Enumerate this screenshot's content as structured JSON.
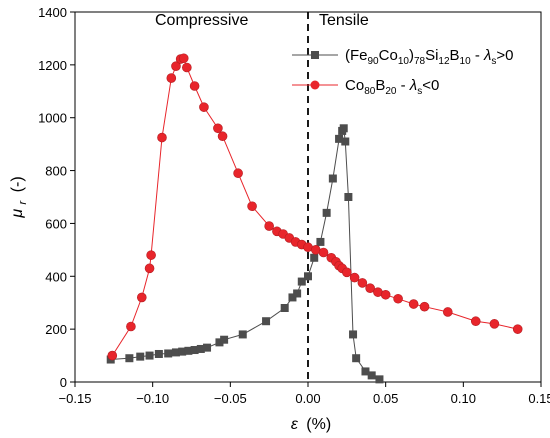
{
  "chart_data": {
    "type": "line",
    "xlabel_symbol": "ε",
    "xlabel_unit": "(%)",
    "ylabel_symbol": "μ",
    "ylabel_sub": "r",
    "ylabel_unit": "(-)",
    "xlim": [
      -0.15,
      0.15
    ],
    "ylim": [
      0,
      1400
    ],
    "x_ticks": [
      -0.15,
      -0.1,
      -0.05,
      0.0,
      0.05,
      0.1,
      0.15
    ],
    "x_tick_labels": [
      "−0.15",
      "−0.10",
      "−0.05",
      "0.00",
      "0.05",
      "0.10",
      "0.15"
    ],
    "y_ticks": [
      0,
      200,
      400,
      600,
      800,
      1000,
      1200,
      1400
    ],
    "y_tick_labels": [
      "0",
      "200",
      "400",
      "600",
      "800",
      "1000",
      "1200",
      "1400"
    ],
    "annotations": [
      {
        "text": "Compressive"
      },
      {
        "text": "Tensile"
      }
    ],
    "reference_line": {
      "x": 0,
      "style": "dashed"
    },
    "grid": false,
    "legend_position": "top-right",
    "series": [
      {
        "name": "(Fe90Co10)78Si12B10 - λs>0",
        "legend_parts": [
          "(Fe",
          "90",
          "Co",
          "10",
          ")",
          "78",
          "Si",
          "12",
          "B",
          "10",
          "  -  ",
          "λ",
          "s",
          ">0"
        ],
        "color": "#4d4d4d",
        "marker": "square",
        "x": [
          -0.127,
          -0.115,
          -0.108,
          -0.102,
          -0.096,
          -0.09,
          -0.085,
          -0.081,
          -0.077,
          -0.073,
          -0.069,
          -0.065,
          -0.057,
          -0.054,
          -0.042,
          -0.027,
          -0.015,
          -0.01,
          -0.007,
          -0.004,
          0.0,
          0.004,
          0.008,
          0.012,
          0.016,
          0.02,
          0.022,
          0.023,
          0.024,
          0.026,
          0.029,
          0.031,
          0.037,
          0.041,
          0.046
        ],
        "y": [
          85,
          90,
          96,
          100,
          106,
          108,
          112,
          115,
          118,
          121,
          125,
          130,
          150,
          160,
          180,
          230,
          280,
          320,
          335,
          380,
          400,
          470,
          530,
          640,
          770,
          920,
          950,
          960,
          910,
          700,
          180,
          90,
          40,
          25,
          10
        ]
      },
      {
        "name": "Co80B20 - λs<0",
        "legend_parts": [
          "Co",
          "80",
          "B",
          "20",
          "                       -  ",
          "λ",
          "s",
          "<0"
        ],
        "color": "#e8252b",
        "marker": "circle",
        "x": [
          -0.126,
          -0.114,
          -0.107,
          -0.102,
          -0.101,
          -0.094,
          -0.088,
          -0.085,
          -0.082,
          -0.08,
          -0.078,
          -0.073,
          -0.067,
          -0.058,
          -0.055,
          -0.045,
          -0.036,
          -0.025,
          -0.02,
          -0.016,
          -0.012,
          -0.008,
          -0.004,
          0.0,
          0.005,
          0.01,
          0.015,
          0.018,
          0.02,
          0.022,
          0.025,
          0.03,
          0.035,
          0.04,
          0.045,
          0.05,
          0.058,
          0.068,
          0.075,
          0.09,
          0.108,
          0.12,
          0.135
        ],
        "y": [
          100,
          210,
          320,
          430,
          480,
          925,
          1150,
          1195,
          1222,
          1225,
          1190,
          1120,
          1040,
          960,
          930,
          790,
          665,
          590,
          570,
          560,
          545,
          530,
          520,
          510,
          500,
          490,
          470,
          455,
          440,
          430,
          415,
          395,
          375,
          355,
          340,
          330,
          315,
          295,
          285,
          265,
          230,
          220,
          200
        ]
      }
    ]
  }
}
